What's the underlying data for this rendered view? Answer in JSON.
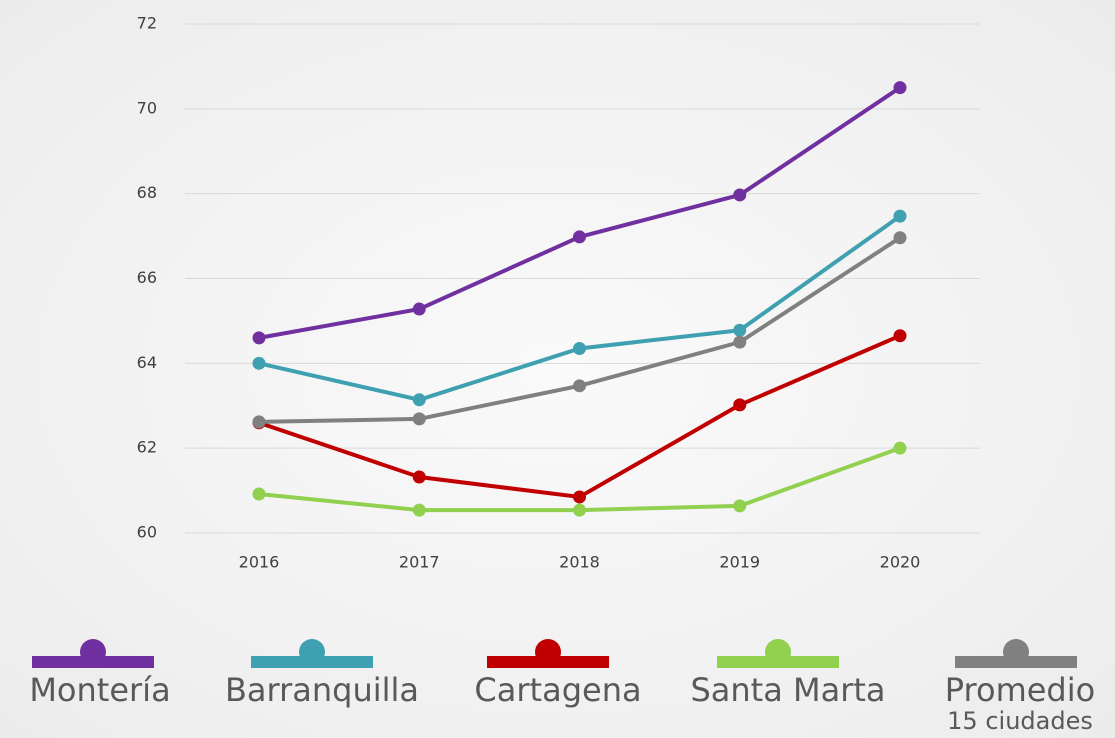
{
  "chart_data": {
    "type": "line",
    "categories": [
      "2016",
      "2017",
      "2018",
      "2019",
      "2020"
    ],
    "series": [
      {
        "name": "Montería",
        "color": "#7030a0",
        "values": [
          64.6,
          65.28,
          66.98,
          67.97,
          70.5
        ]
      },
      {
        "name": "Barranquilla",
        "color": "#3ea0b0",
        "values": [
          64.0,
          63.14,
          64.35,
          64.78,
          67.47
        ]
      },
      {
        "name": "Cartagena",
        "color": "#c00000",
        "values": [
          62.6,
          61.32,
          60.85,
          63.02,
          64.65
        ]
      },
      {
        "name": "Santa Marta",
        "color": "#92d050",
        "values": [
          60.92,
          60.54,
          60.54,
          60.64,
          62.0
        ]
      },
      {
        "name": "Promedio",
        "note": "15 ciudades",
        "color": "#808080",
        "values": [
          62.62,
          62.69,
          63.47,
          64.5,
          66.96
        ]
      }
    ],
    "ylim": [
      60,
      72
    ],
    "yticks": [
      60,
      62,
      64,
      66,
      68,
      70,
      72
    ],
    "grid": true,
    "legend": "bottom"
  }
}
